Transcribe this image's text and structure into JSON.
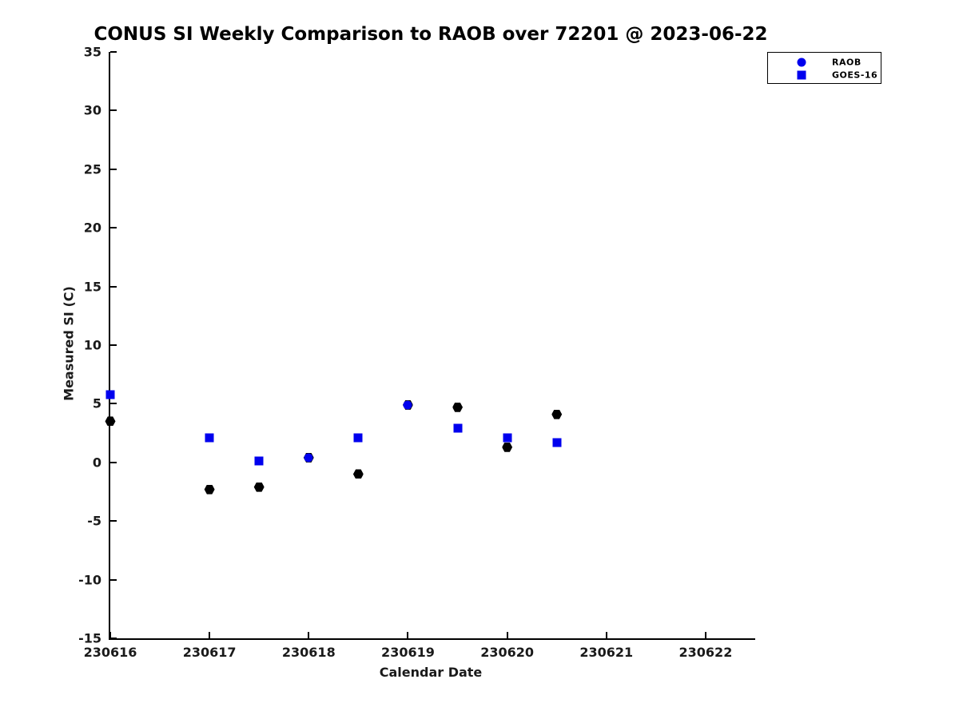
{
  "chart_data": {
    "type": "scatter",
    "title": "CONUS SI Weekly Comparison to RAOB over 72201 @ 2023-06-22",
    "xlabel": "Calendar Date",
    "ylabel": "Measured SI (C)",
    "x_tick_labels": [
      "230616",
      "230617",
      "230618",
      "230619",
      "230620",
      "230621",
      "230622"
    ],
    "x_tick_days": [
      0,
      1,
      2,
      3,
      4,
      5,
      6
    ],
    "x_range_days": [
      0,
      6.5
    ],
    "ylim": [
      -15,
      35
    ],
    "y_ticks": [
      35,
      30,
      25,
      20,
      15,
      10,
      5,
      0,
      -5,
      -10,
      -15
    ],
    "grid": false,
    "axis_color": "#000000",
    "text_color": "#1a1a1a",
    "accent_blue": "#0000ee",
    "legend": {
      "position": "top-right",
      "entries": [
        {
          "label": "RAOB",
          "marker": "circle",
          "color": "#0000ee"
        },
        {
          "label": "GOES-16",
          "marker": "square",
          "color": "#0000ee"
        }
      ]
    },
    "series": [
      {
        "name": "black-unlabeled",
        "marker": "hexagram",
        "color": "#000000",
        "points": [
          [
            0,
            3.5
          ],
          [
            1,
            -2.3
          ],
          [
            1.5,
            -2.1
          ],
          [
            2,
            0.4
          ],
          [
            2.5,
            -1.0
          ],
          [
            3,
            4.9
          ],
          [
            3.5,
            4.7
          ],
          [
            4,
            1.3
          ],
          [
            4.5,
            4.1
          ]
        ]
      },
      {
        "name": "GOES-16",
        "marker": "square",
        "color": "#0000ee",
        "points": [
          [
            0,
            5.8
          ],
          [
            1,
            2.1
          ],
          [
            1.5,
            0.1
          ],
          [
            2.5,
            2.1
          ],
          [
            3.5,
            2.9
          ],
          [
            4,
            2.1
          ],
          [
            4.5,
            1.7
          ]
        ]
      },
      {
        "name": "RAOB",
        "marker": "circle",
        "color": "#0000ee",
        "points": [
          [
            2,
            0.4
          ],
          [
            3,
            4.9
          ]
        ]
      }
    ]
  }
}
